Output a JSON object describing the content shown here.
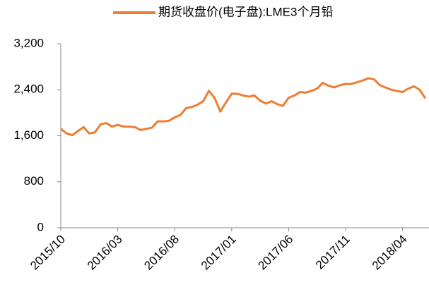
{
  "chart_data": {
    "type": "line",
    "categories": [
      "2015/10",
      null,
      null,
      null,
      null,
      null,
      null,
      null,
      null,
      null,
      "2016/03",
      null,
      null,
      null,
      null,
      null,
      null,
      null,
      null,
      null,
      "2016/08",
      null,
      null,
      null,
      null,
      null,
      null,
      null,
      null,
      null,
      "2017/01",
      null,
      null,
      null,
      null,
      null,
      null,
      null,
      null,
      null,
      "2017/06",
      null,
      null,
      null,
      null,
      null,
      null,
      null,
      null,
      null,
      "2017/11",
      null,
      null,
      null,
      null,
      null,
      null,
      null,
      null,
      null,
      "2018/04",
      null,
      null,
      null,
      null
    ],
    "series": [
      {
        "name": "期货收盘价(电子盘):LME3个月铅",
        "color": "#ED7D31",
        "values": [
          1720,
          1640,
          1610,
          1680,
          1750,
          1640,
          1660,
          1800,
          1820,
          1760,
          1790,
          1760,
          1760,
          1750,
          1700,
          1720,
          1740,
          1850,
          1850,
          1860,
          1920,
          1960,
          2080,
          2100,
          2140,
          2200,
          2380,
          2260,
          2020,
          2180,
          2330,
          2330,
          2300,
          2280,
          2300,
          2210,
          2160,
          2200,
          2150,
          2120,
          2260,
          2300,
          2360,
          2350,
          2380,
          2420,
          2520,
          2470,
          2440,
          2480,
          2500,
          2500,
          2530,
          2560,
          2600,
          2580,
          2480,
          2440,
          2400,
          2380,
          2360,
          2420,
          2460,
          2400,
          2250
        ]
      }
    ],
    "ylim": [
      0,
      3200
    ],
    "yticks": [
      0,
      800,
      {
        "value": 1600,
        "label": "1,600"
      },
      {
        "value": 2400,
        "label": "2,400"
      },
      {
        "value": 3200,
        "label": "3,200"
      }
    ],
    "grid": false,
    "legend": "top"
  }
}
